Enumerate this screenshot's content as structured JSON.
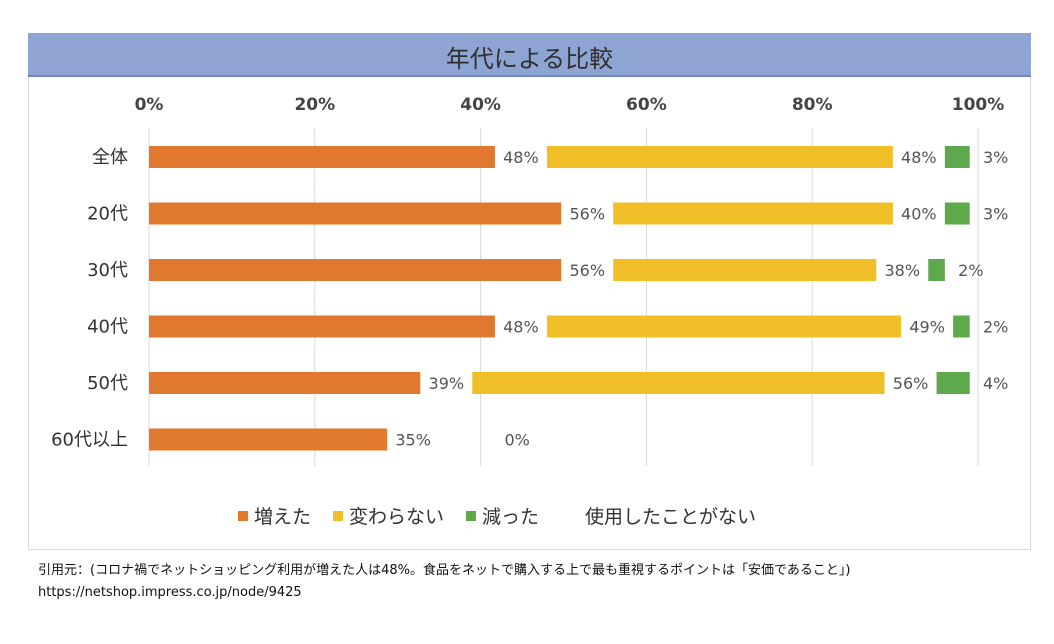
{
  "title": "年代による比較",
  "chart_data": {
    "type": "bar",
    "orientation": "horizontal",
    "stacked": true,
    "title": "年代による比較",
    "categories": [
      "全体",
      "20代",
      "30代",
      "40代",
      "50代",
      "60代以上"
    ],
    "series": [
      {
        "name": "増えた",
        "color": "#e0782e",
        "values": [
          48,
          56,
          56,
          48,
          39,
          35
        ]
      },
      {
        "name": "変わらない",
        "color": "#f0bf28",
        "values": [
          48,
          40,
          38,
          49,
          56,
          0
        ]
      },
      {
        "name": "減った",
        "color": "#5ea94c",
        "values": [
          3,
          3,
          2,
          2,
          4,
          0
        ]
      },
      {
        "name": "使用したことがない",
        "color": "#ffffff",
        "values": [
          null,
          null,
          null,
          null,
          null,
          null
        ]
      }
    ],
    "bar_segments": [
      [
        {
          "value": 48,
          "label": "48%"
        },
        {
          "value": 48,
          "label": "48%"
        },
        {
          "value": 3,
          "label": "3%"
        }
      ],
      [
        {
          "value": 56,
          "label": "56%"
        },
        {
          "value": 40,
          "label": "40%"
        },
        {
          "value": 3,
          "label": "3%"
        }
      ],
      [
        {
          "value": 56,
          "label": "56%"
        },
        {
          "value": 38,
          "label": "38%"
        },
        {
          "value": 2,
          "label": "2%"
        }
      ],
      [
        {
          "value": 48,
          "label": "48%"
        },
        {
          "value": 49,
          "label": "49%"
        },
        {
          "value": 2,
          "label": "2%"
        }
      ],
      [
        {
          "value": 39,
          "label": "39%"
        },
        {
          "value": 56,
          "label": "56%"
        },
        {
          "value": 4,
          "label": "4%"
        }
      ],
      [
        {
          "value": 35,
          "label": "35%"
        },
        {
          "value": 0,
          "label": ""
        },
        {
          "value": 0,
          "label": "0%"
        }
      ]
    ],
    "xticks": [
      "0%",
      "20%",
      "40%",
      "60%",
      "80%",
      "100%"
    ],
    "xlim": [
      0,
      100
    ],
    "legend_position": "bottom",
    "grid": true
  },
  "legend": [
    "増えた",
    "変わらない",
    "減った",
    "使用したことがない"
  ],
  "footer": {
    "citation": "引用元：(コロナ禍でネットショッピング利用が増えた人は48%。食品をネットで購入する上で最も重視するポイントは「安価であること」)",
    "url": "https://netshop.impress.co.jp/node/9425"
  }
}
